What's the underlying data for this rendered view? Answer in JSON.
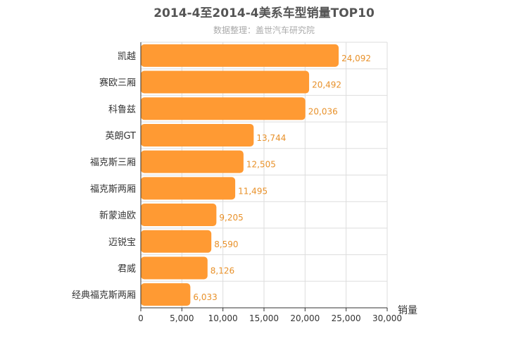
{
  "chart_data": {
    "type": "bar",
    "orientation": "horizontal",
    "title": "2014-4至2014-4美系车型销量TOP10",
    "subtitle": "数据整理：盖世汽车研究院",
    "xlabel": "销量",
    "ylabel": "",
    "xlim": [
      0,
      30000
    ],
    "ticks": [
      0,
      5000,
      10000,
      15000,
      20000,
      25000,
      30000
    ],
    "tick_labels": [
      "0",
      "5,000",
      "10,000",
      "15,000",
      "20,000",
      "25,000",
      "30,000"
    ],
    "categories": [
      "凯越",
      "赛欧三厢",
      "科鲁兹",
      "英朗GT",
      "福克斯三厢",
      "福克斯两厢",
      "新蒙迪欧",
      "迈锐宝",
      "君威",
      "经典福克斯两厢"
    ],
    "values": [
      24092,
      20492,
      20036,
      13744,
      12505,
      11495,
      9205,
      8590,
      8126,
      6033
    ],
    "value_labels": [
      "24,092",
      "20,492",
      "20,036",
      "13,744",
      "12,505",
      "11,495",
      "9,205",
      "8,590",
      "8,126",
      "6,033"
    ],
    "grid": true,
    "legend": "none",
    "colors": {
      "bar": "#ff9a33",
      "label": "#e8912a",
      "title": "#555555",
      "subtitle": "#aaaaaa",
      "axis": "#333333",
      "grid": "#dddddd"
    }
  }
}
